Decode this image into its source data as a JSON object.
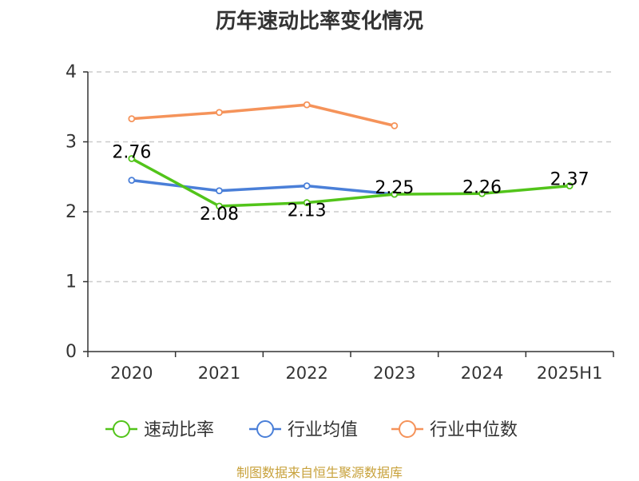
{
  "title": "历年速动比率变化情况",
  "source": "制图数据来自恒生聚源数据库",
  "colors": {
    "series_0": "#52c41a",
    "series_1": "#4a7fd8",
    "series_2": "#f5935a",
    "grid": "#cccccc",
    "axis": "#333333",
    "source_text": "#c8a23c"
  },
  "chart_data": {
    "type": "line",
    "title": "历年速动比率变化情况",
    "xlabel": "",
    "ylabel": "",
    "categories": [
      "2020",
      "2021",
      "2022",
      "2023",
      "2024",
      "2025H1"
    ],
    "ylim": [
      0,
      4
    ],
    "yticks": [
      "0",
      "1",
      "2",
      "3",
      "4"
    ],
    "grid": true,
    "legend_position": "bottom-center",
    "series": [
      {
        "name": "速动比率",
        "values": [
          2.76,
          2.08,
          2.13,
          2.25,
          2.26,
          2.37
        ],
        "labels": [
          "2.76",
          "2.08",
          "2.13",
          "2.25",
          "2.26",
          "2.37"
        ]
      },
      {
        "name": "行业均值",
        "values": [
          2.45,
          2.3,
          2.37,
          2.25,
          null,
          null
        ]
      },
      {
        "name": "行业中位数",
        "values": [
          3.33,
          3.42,
          3.53,
          3.23,
          null,
          null
        ]
      }
    ]
  }
}
